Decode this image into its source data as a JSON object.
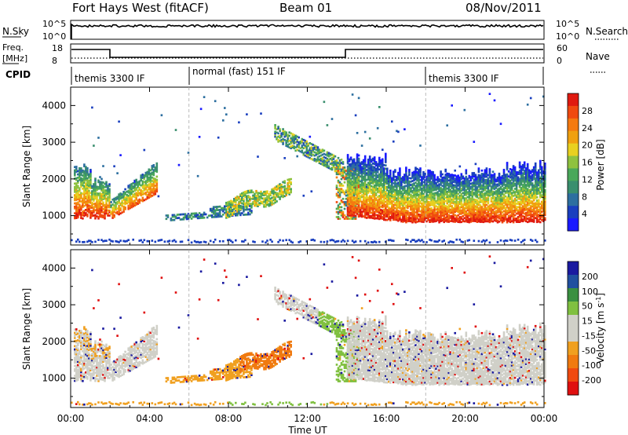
{
  "header": {
    "station": "Fort Hays West (fitACF)",
    "beam": "Beam 01",
    "date": "08/Nov/2011"
  },
  "strip_labels": {
    "nsky": "N.Sky",
    "nsearch": "N.Search",
    "freq": "Freq.",
    "mhz": "[MHz]",
    "nave": "Nave",
    "cpid": "CPID",
    "nsky_ticks": [
      "10^5",
      "10^0"
    ],
    "nsearch_ticks": [
      "10^5",
      "10^0"
    ],
    "freq_ticks": [
      "18",
      "8"
    ],
    "nave_ticks": [
      "60",
      "0"
    ]
  },
  "cpid_segments": [
    {
      "label": "themis 3300 IF",
      "start_hr": 0,
      "end_hr": 6
    },
    {
      "label": "normal (fast) 151 IF",
      "start_hr": 6,
      "end_hr": 18
    },
    {
      "label": "themis 3300 IF",
      "start_hr": 18,
      "end_hr": 24
    }
  ],
  "colors": {
    "power": [
      "#1a1aff",
      "#1a3fbf",
      "#2d6fa0",
      "#3a8f6e",
      "#4aa85a",
      "#8fc23f",
      "#e8d020",
      "#f0a010",
      "#f57a10",
      "#f04a10",
      "#e01a10"
    ],
    "velocity": [
      "#e01010",
      "#f04a10",
      "#f07a10",
      "#f0a020",
      "#d0d0c8",
      "#d0d0c8",
      "#80c040",
      "#3a9040",
      "#2050a0",
      "#1a1aa0"
    ],
    "gray": "#d0d0c8"
  },
  "chart_data": [
    {
      "type": "heatmap",
      "name": "power",
      "ylabel": "Slant Range [km]",
      "yticks": [
        1000,
        2000,
        3000,
        4000
      ],
      "ylim": [
        200,
        4500
      ],
      "xlim": [
        0,
        24
      ],
      "colorbar": {
        "label": "Power [dB]",
        "ticks": [
          "4",
          "8",
          "12",
          "16",
          "20",
          "24",
          "28"
        ],
        "range": [
          0,
          32
        ]
      }
    },
    {
      "type": "heatmap",
      "name": "velocity",
      "ylabel": "Slant Range [km]",
      "yticks": [
        1000,
        2000,
        3000,
        4000
      ],
      "ylim": [
        200,
        4500
      ],
      "xlim": [
        0,
        24
      ],
      "xticks": [
        "00:00",
        "04:00",
        "08:00",
        "12:00",
        "16:00",
        "20:00",
        "00:00"
      ],
      "xlabel": "Time UT",
      "colorbar": {
        "label": "Velocity [m s^-1]",
        "ticks": [
          "200",
          "100",
          "50",
          "15",
          "-15",
          "-50",
          "-100",
          "-200"
        ]
      }
    }
  ]
}
